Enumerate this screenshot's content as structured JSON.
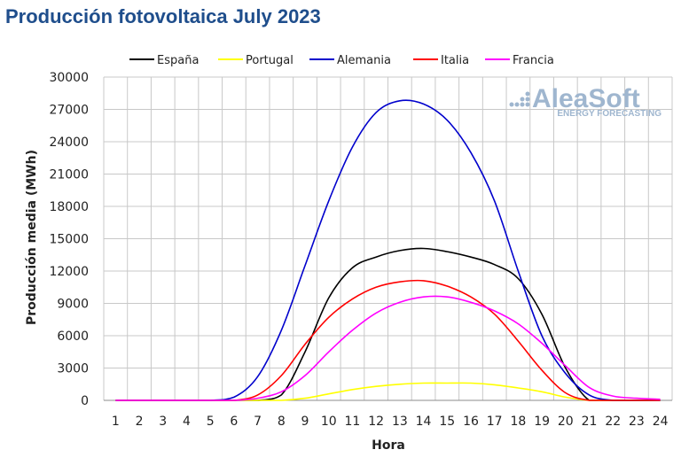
{
  "chart_data": {
    "type": "line",
    "title": "Producción fotovoltaica July 2023",
    "xlabel": "Hora",
    "ylabel": "Producción media (MWh)",
    "x": [
      1,
      2,
      3,
      4,
      5,
      6,
      7,
      8,
      9,
      10,
      11,
      12,
      13,
      14,
      15,
      16,
      17,
      18,
      19,
      20,
      21,
      22,
      23,
      24
    ],
    "ylim": [
      0,
      30000
    ],
    "yticks": [
      0,
      3000,
      6000,
      9000,
      12000,
      15000,
      18000,
      21000,
      24000,
      27000,
      30000
    ],
    "grid": true,
    "legend_position": "top",
    "logo": {
      "main": "AleaSoft",
      "sub": "ENERGY FORECASTING"
    },
    "series": [
      {
        "name": "España",
        "color": "#000000",
        "values": [
          0,
          0,
          0,
          0,
          0,
          0,
          0,
          500,
          4500,
          9500,
          12300,
          13300,
          13900,
          14100,
          13800,
          13300,
          12600,
          11300,
          8000,
          3000,
          0,
          0,
          0,
          0
        ]
      },
      {
        "name": "Portugal",
        "color": "#ffff00",
        "values": [
          0,
          0,
          0,
          0,
          0,
          0,
          0,
          0,
          200,
          600,
          1000,
          1300,
          1500,
          1600,
          1600,
          1600,
          1450,
          1150,
          800,
          300,
          0,
          0,
          0,
          0
        ]
      },
      {
        "name": "Alemania",
        "color": "#0000cc",
        "values": [
          0,
          0,
          0,
          0,
          0,
          300,
          2200,
          6500,
          12500,
          18500,
          23500,
          26700,
          27800,
          27500,
          26000,
          23000,
          18500,
          12000,
          6000,
          2500,
          500,
          0,
          0,
          0
        ]
      },
      {
        "name": "Italia",
        "color": "#ff0000",
        "values": [
          0,
          0,
          0,
          0,
          0,
          0,
          500,
          2300,
          5200,
          7700,
          9400,
          10500,
          11000,
          11100,
          10600,
          9600,
          8000,
          5500,
          2800,
          700,
          0,
          0,
          0,
          0
        ]
      },
      {
        "name": "Francia",
        "color": "#ff00ff",
        "values": [
          0,
          0,
          0,
          0,
          0,
          0,
          200,
          800,
          2300,
          4500,
          6500,
          8100,
          9100,
          9600,
          9600,
          9100,
          8300,
          7100,
          5300,
          3200,
          1200,
          400,
          200,
          100
        ]
      }
    ]
  }
}
